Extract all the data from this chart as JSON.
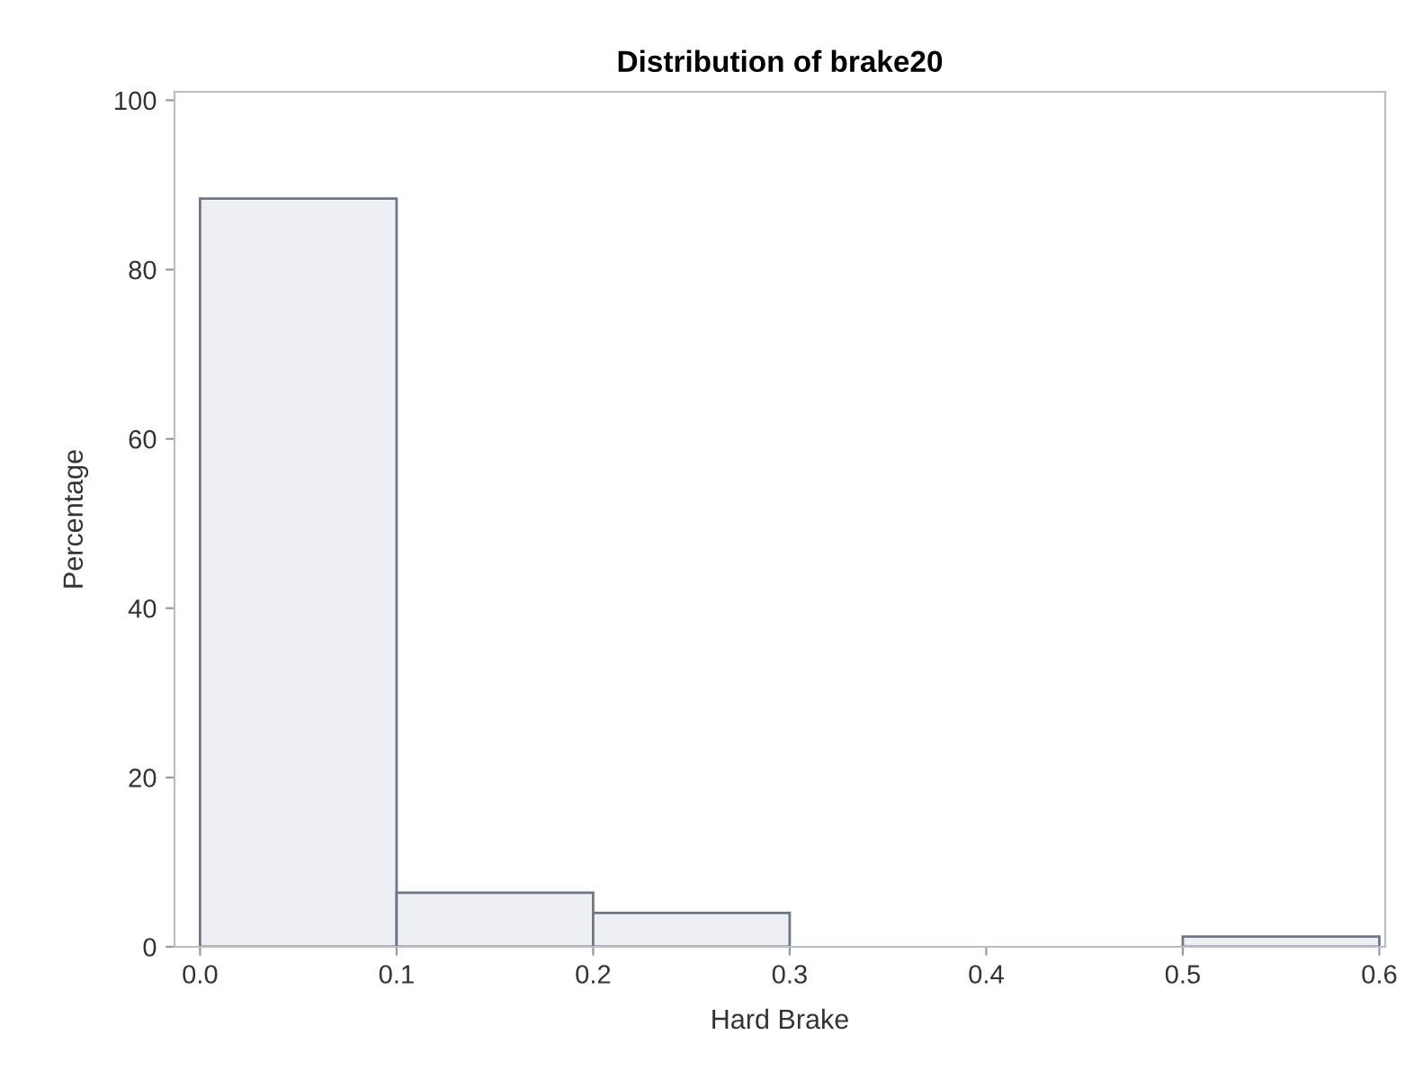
{
  "chart_data": {
    "type": "histogram",
    "title": "Distribution of brake20",
    "xlabel": "Hard Brake",
    "ylabel": "Percentage",
    "bins": [
      0.0,
      0.1,
      0.2,
      0.3,
      0.4,
      0.5,
      0.6
    ],
    "values": [
      88.4,
      6.4,
      4.0,
      0,
      0,
      1.2
    ],
    "color": "#eeeff2",
    "xlim": [
      -0.013,
      0.603
    ],
    "ylim": [
      0,
      101
    ],
    "xticks": [
      {
        "value": 0.0,
        "label": "0.0"
      },
      {
        "value": 0.1,
        "label": "0.1"
      },
      {
        "value": 0.2,
        "label": "0.2"
      },
      {
        "value": 0.3,
        "label": "0.3"
      },
      {
        "value": 0.4,
        "label": "0.4"
      },
      {
        "value": 0.5,
        "label": "0.5"
      },
      {
        "value": 0.6,
        "label": "0.6"
      }
    ],
    "yticks": [
      0,
      20,
      40,
      60,
      80,
      100
    ],
    "grid": false
  }
}
